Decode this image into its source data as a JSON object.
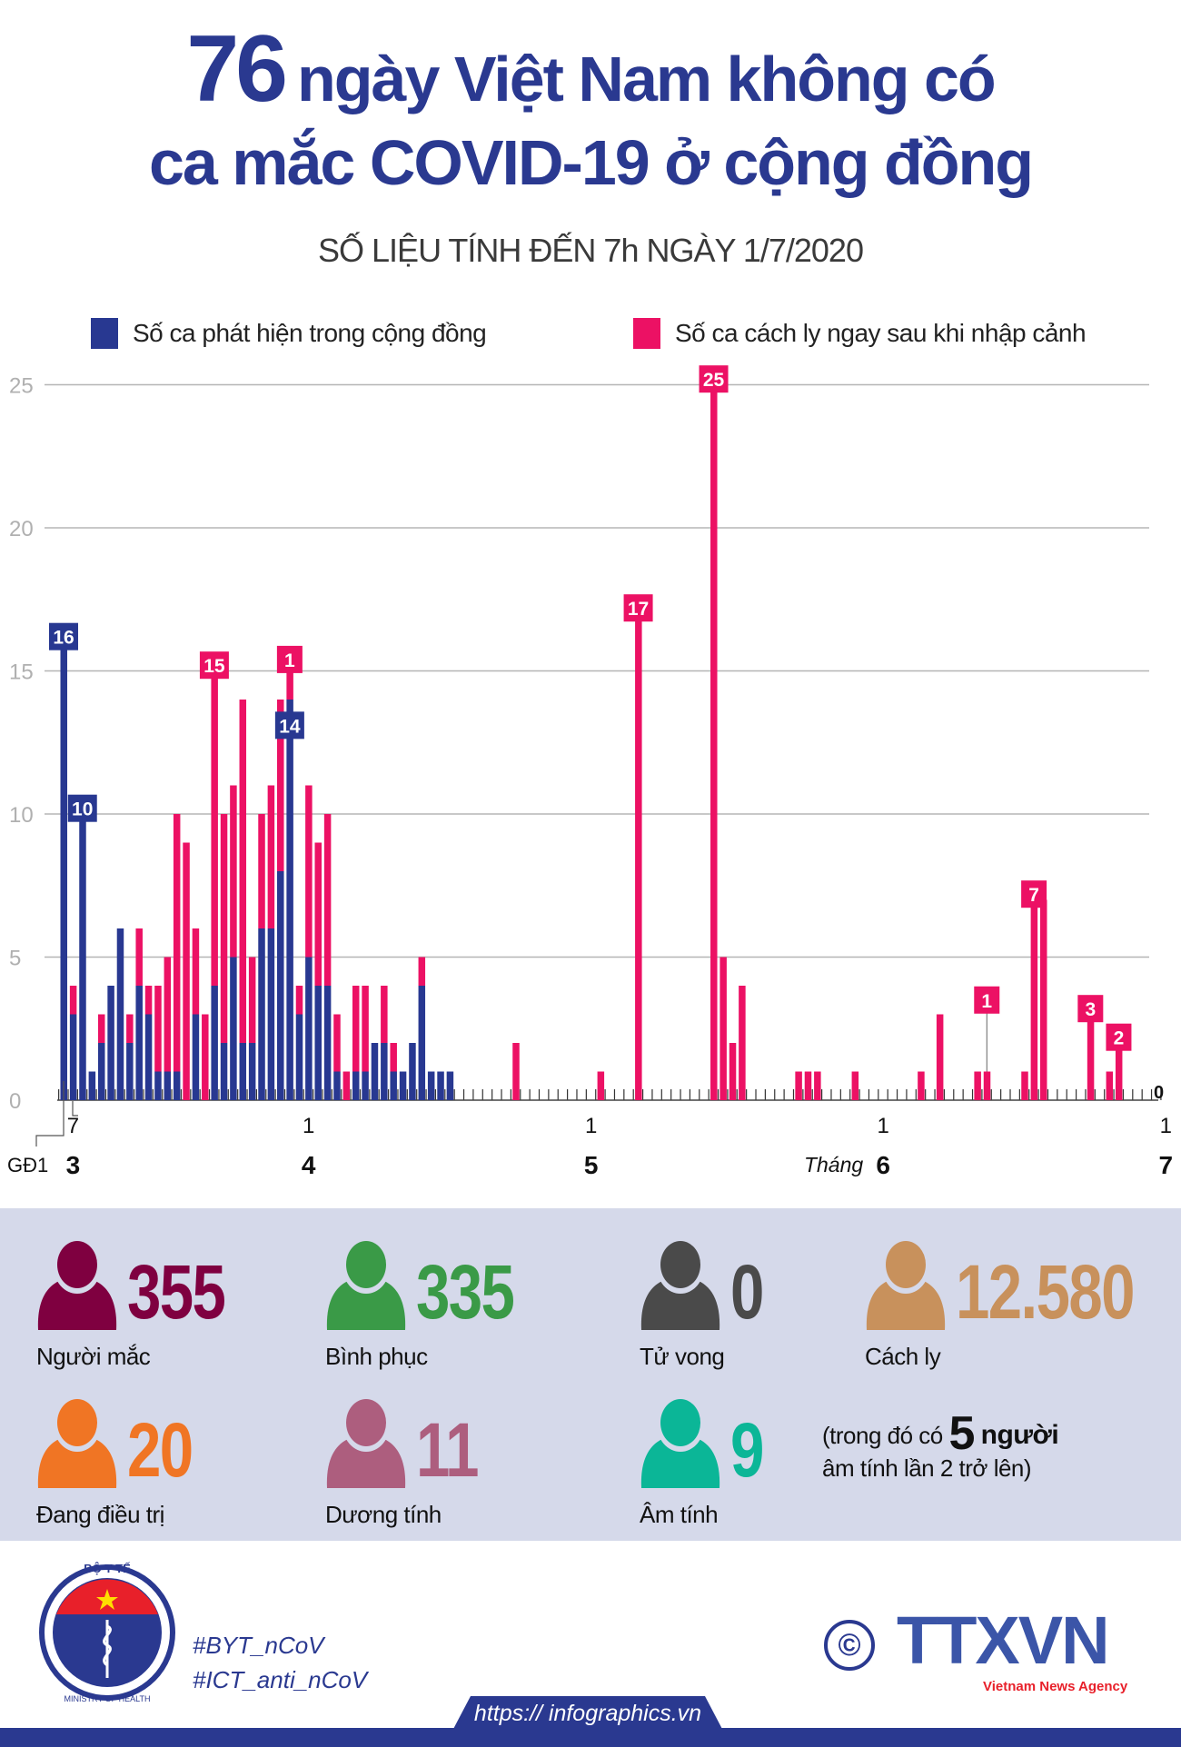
{
  "header": {
    "title_number": "76",
    "title_line1": "ngày Việt Nam không có",
    "title_line2": "ca mắc COVID-19 ở cộng đồng",
    "subtitle": "SỐ LIỆU TÍNH ĐẾN 7h NGÀY 1/7/2020"
  },
  "chart_data": {
    "type": "bar",
    "stacked": true,
    "grid": true,
    "ylim": [
      0,
      25
    ],
    "yticks": [
      "0",
      "5",
      "10",
      "15",
      "20",
      "25"
    ],
    "legend_position": "top",
    "x_tick_labels": [
      {
        "date": "2020-03-07",
        "label": "7"
      },
      {
        "date": "2020-04-01",
        "label": "1"
      },
      {
        "date": "2020-05-01",
        "label": "1"
      },
      {
        "date": "2020-06-01",
        "label": "1"
      },
      {
        "date": "2020-07-01",
        "label": "1"
      }
    ],
    "month_labels": [
      {
        "date": "2020-03-07",
        "label": "3"
      },
      {
        "date": "2020-04-01",
        "label": "4"
      },
      {
        "date": "2020-05-01",
        "label": "5"
      },
      {
        "date": "2020-06-01",
        "label": "6",
        "prefix": "Tháng"
      },
      {
        "date": "2020-07-01",
        "label": "7"
      }
    ],
    "phase_label": "GĐ1",
    "end_label": "0",
    "series": [
      {
        "name": "Số ca phát hiện trong cộng đồng",
        "color": "#283891"
      },
      {
        "name": "Số ca cách ly ngay sau khi nhập cảnh",
        "color": "#ec1164"
      }
    ],
    "x": [
      "2020-03-06",
      "2020-03-07",
      "2020-03-08",
      "2020-03-09",
      "2020-03-10",
      "2020-03-11",
      "2020-03-12",
      "2020-03-13",
      "2020-03-14",
      "2020-03-15",
      "2020-03-16",
      "2020-03-17",
      "2020-03-18",
      "2020-03-19",
      "2020-03-20",
      "2020-03-21",
      "2020-03-22",
      "2020-03-23",
      "2020-03-24",
      "2020-03-25",
      "2020-03-26",
      "2020-03-27",
      "2020-03-28",
      "2020-03-29",
      "2020-03-30",
      "2020-03-31",
      "2020-04-01",
      "2020-04-02",
      "2020-04-03",
      "2020-04-04",
      "2020-04-05",
      "2020-04-06",
      "2020-04-07",
      "2020-04-08",
      "2020-04-09",
      "2020-04-10",
      "2020-04-11",
      "2020-04-12",
      "2020-04-13",
      "2020-04-14",
      "2020-04-15",
      "2020-04-16",
      "2020-04-23",
      "2020-05-02",
      "2020-05-06",
      "2020-05-14",
      "2020-05-15",
      "2020-05-16",
      "2020-05-17",
      "2020-05-23",
      "2020-05-24",
      "2020-05-25",
      "2020-05-29",
      "2020-06-05",
      "2020-06-07",
      "2020-06-11",
      "2020-06-12",
      "2020-06-16",
      "2020-06-17",
      "2020-06-18",
      "2020-06-23",
      "2020-06-25",
      "2020-06-26"
    ],
    "community": [
      16,
      3,
      10,
      1,
      2,
      4,
      6,
      2,
      4,
      3,
      1,
      1,
      1,
      0,
      3,
      0,
      4,
      2,
      5,
      2,
      2,
      6,
      6,
      8,
      14,
      3,
      5,
      4,
      4,
      1,
      0,
      1,
      1,
      2,
      2,
      1,
      1,
      2,
      4,
      1,
      1,
      1,
      0,
      0,
      0,
      0,
      0,
      0,
      0,
      0,
      0,
      0,
      0,
      0,
      0,
      0,
      0,
      0,
      0,
      0,
      0,
      0,
      0
    ],
    "quarantine": [
      0,
      1,
      0,
      0,
      1,
      0,
      0,
      1,
      2,
      1,
      3,
      4,
      9,
      9,
      3,
      3,
      11,
      8,
      6,
      12,
      3,
      4,
      5,
      6,
      1,
      1,
      6,
      5,
      6,
      2,
      1,
      3,
      3,
      0,
      2,
      1,
      0,
      0,
      1,
      0,
      0,
      0,
      2,
      1,
      17,
      25,
      5,
      2,
      4,
      1,
      1,
      1,
      1,
      1,
      3,
      1,
      1,
      1,
      7,
      7,
      3,
      1,
      2
    ],
    "data_labels": [
      {
        "date": "2020-03-06",
        "series": "community",
        "text": "16"
      },
      {
        "date": "2020-03-08",
        "series": "community",
        "text": "10"
      },
      {
        "date": "2020-03-22",
        "series": "quarantine",
        "text": "15"
      },
      {
        "date": "2020-03-30",
        "series": "quarantine",
        "text": "1"
      },
      {
        "date": "2020-03-30",
        "series": "community",
        "text": "14"
      },
      {
        "date": "2020-05-06",
        "series": "quarantine",
        "text": "17"
      },
      {
        "date": "2020-05-14",
        "series": "quarantine",
        "text": "25"
      },
      {
        "date": "2020-06-12",
        "series": "quarantine",
        "text": "1"
      },
      {
        "date": "2020-06-17",
        "series": "quarantine",
        "text": "7"
      },
      {
        "date": "2020-06-23",
        "series": "quarantine",
        "text": "3"
      },
      {
        "date": "2020-06-26",
        "series": "quarantine",
        "text": "2"
      }
    ]
  },
  "stats": [
    {
      "value": "355",
      "label": "Người mắc",
      "color": "#7f0040"
    },
    {
      "value": "335",
      "label": "Bình phục",
      "color": "#3a9a47"
    },
    {
      "value": "0",
      "label": "Tử vong",
      "color": "#4a4a4a"
    },
    {
      "value": "12.580",
      "label": "Cách ly",
      "color": "#c8915c"
    },
    {
      "value": "20",
      "label": "Đang điều trị",
      "color": "#f07524"
    },
    {
      "value": "11",
      "label": "Dương tính",
      "color": "#ad5e7e"
    },
    {
      "value": "9",
      "label": "Âm tính",
      "color": "#0bb697"
    }
  ],
  "note": {
    "prefix": "(trong đó có",
    "number": "5",
    "unit": "người",
    "line2": "âm tính lần 2 trở lên)"
  },
  "footer": {
    "moh_logo_top": "BỘ Y TẾ",
    "moh_logo_bottom": "MINISTRY OF HEALTH",
    "hashtags": [
      "#BYT_nCoV",
      "#ICT_anti_nCoV"
    ],
    "copyright": "©",
    "agency_logo": "TTXVN",
    "agency_name": "Vietnam News Agency",
    "url": "https:// infographics.vn"
  }
}
